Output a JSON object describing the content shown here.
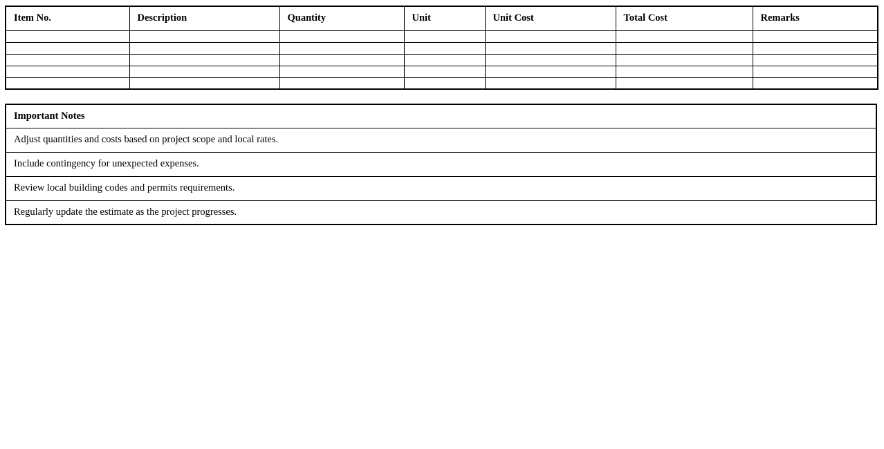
{
  "estimate_table": {
    "headers": {
      "item_no": "Item No.",
      "description": "Description",
      "quantity": "Quantity",
      "unit": "Unit",
      "unit_cost": "Unit Cost",
      "total_cost": "Total Cost",
      "remarks": "Remarks"
    },
    "empty_row_count": 5
  },
  "notes": {
    "title": "Important Notes",
    "items": [
      "Adjust quantities and costs based on project scope and local rates.",
      "Include contingency for unexpected expenses.",
      "Review local building codes and permits requirements.",
      "Regularly update the estimate as the project progresses."
    ]
  },
  "colors": {
    "border": "#000000",
    "background": "#ffffff",
    "text": "#000000"
  }
}
